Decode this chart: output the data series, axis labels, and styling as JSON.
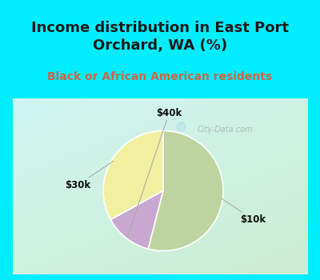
{
  "title": "Income distribution in East Port\nOrchard, WA (%)",
  "subtitle": "Black or African American residents",
  "slices": [
    {
      "label": "$30k",
      "value": 33,
      "color": "#f0f0a0"
    },
    {
      "label": "$40k",
      "value": 13,
      "color": "#c8a8d0"
    },
    {
      "label": "$10k",
      "value": 54,
      "color": "#bdd4a0"
    }
  ],
  "title_color": "#1a1a1a",
  "subtitle_color": "#cc6644",
  "header_bg": "#00eeff",
  "label_fontsize": 8.5,
  "title_fontsize": 13,
  "subtitle_fontsize": 10,
  "startangle": 90,
  "label_color": "#111111",
  "watermark": "City-Data.com",
  "label_positions": {
    "$30k": [
      -1.42,
      0.1
    ],
    "$40k": [
      0.1,
      1.3
    ],
    "$10k": [
      1.5,
      -0.48
    ]
  },
  "chart_bg_topleft": [
    0.82,
    0.96,
    0.95
  ],
  "chart_bg_bottomright": [
    0.8,
    0.93,
    0.82
  ]
}
